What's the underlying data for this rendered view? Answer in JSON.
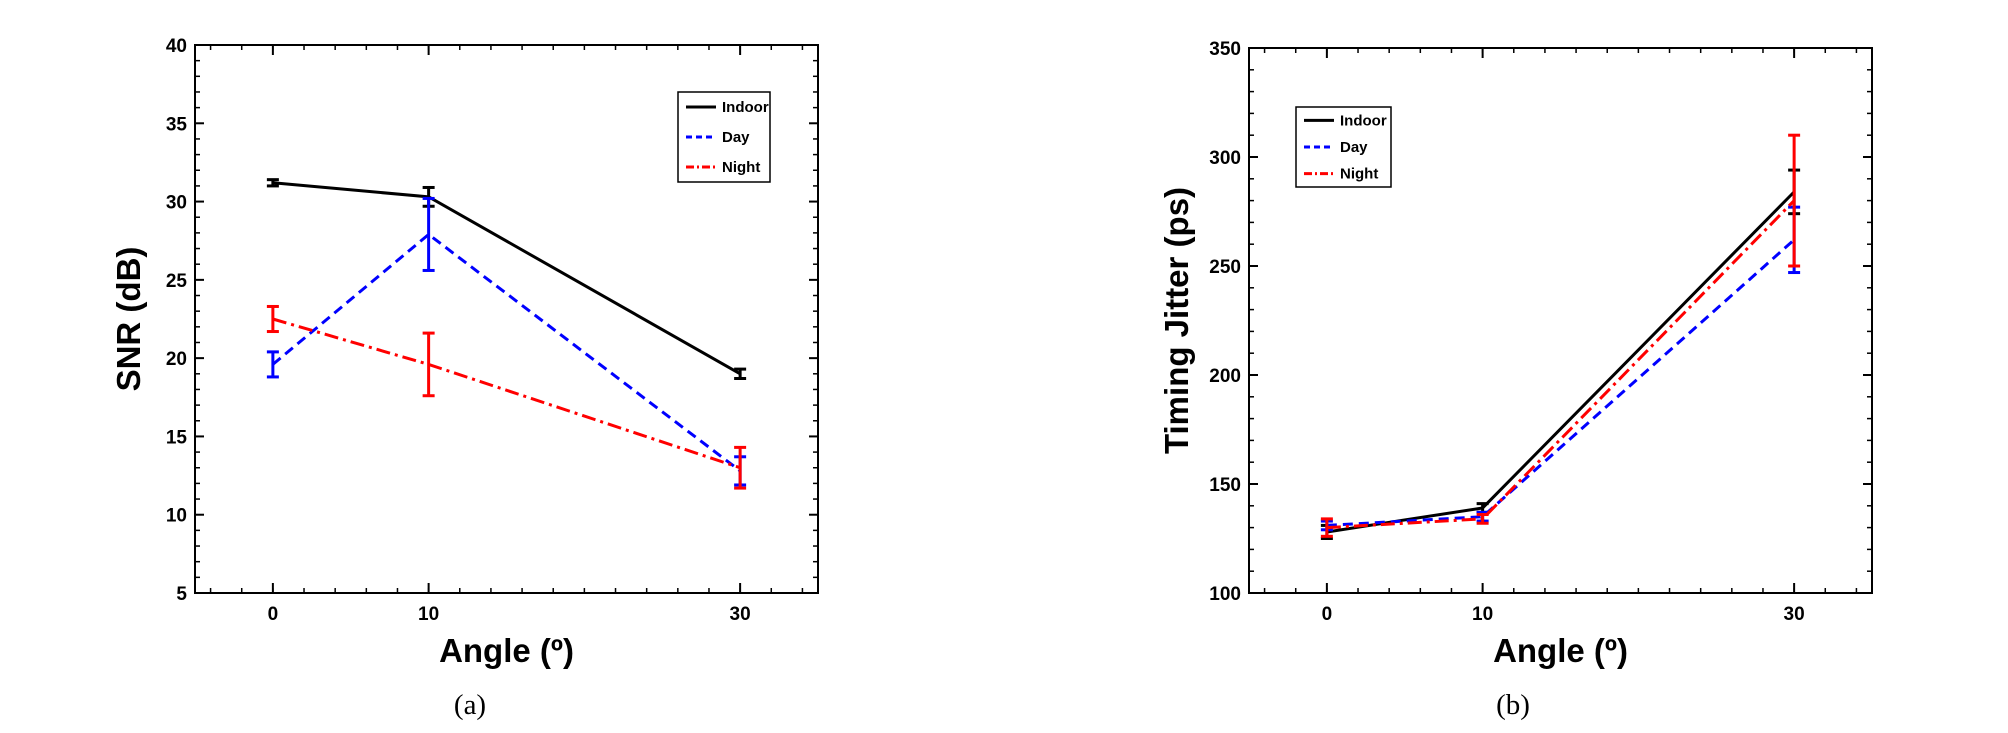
{
  "chart_data": [
    {
      "type": "line",
      "panel_label": "(a)",
      "xlabel": "Angle (º)",
      "ylabel": "SNR (dB)",
      "x": [
        0,
        10,
        30
      ],
      "x_ticks": [
        "0",
        "10",
        "30"
      ],
      "xlim": [
        -5,
        35
      ],
      "ylim": [
        5,
        40
      ],
      "y_ticks": [
        "5",
        "10",
        "15",
        "20",
        "25",
        "30",
        "35",
        "40"
      ],
      "legend_position": "top-right",
      "series": [
        {
          "name": "Indoor",
          "values": [
            31.2,
            30.3,
            19.0
          ],
          "error": [
            0.2,
            0.6,
            0.3
          ],
          "color": "#000000",
          "dash": "solid"
        },
        {
          "name": "Day",
          "values": [
            19.6,
            27.9,
            12.8
          ],
          "error": [
            0.8,
            2.3,
            0.9
          ],
          "color": "#0000ff",
          "dash": "dashed"
        },
        {
          "name": "Night",
          "values": [
            22.5,
            19.6,
            13.0
          ],
          "error": [
            0.8,
            2.0,
            1.3
          ],
          "color": "#ff0000",
          "dash": "dashdot"
        }
      ]
    },
    {
      "type": "line",
      "panel_label": "(b)",
      "xlabel": "Angle (º)",
      "ylabel": "Timing Jitter (ps)",
      "x": [
        0,
        10,
        30
      ],
      "x_ticks": [
        "0",
        "10",
        "30"
      ],
      "xlim": [
        -5,
        35
      ],
      "ylim": [
        100,
        350
      ],
      "y_ticks": [
        "100",
        "150",
        "200",
        "250",
        "300",
        "350"
      ],
      "legend_position": "top-left",
      "series": [
        {
          "name": "Indoor",
          "values": [
            128,
            139,
            284
          ],
          "error": [
            3,
            2,
            10
          ],
          "color": "#000000",
          "dash": "solid"
        },
        {
          "name": "Day",
          "values": [
            131,
            135,
            262
          ],
          "error": [
            2,
            2,
            15
          ],
          "color": "#0000ff",
          "dash": "dashed"
        },
        {
          "name": "Night",
          "values": [
            130,
            134,
            280
          ],
          "error": [
            4,
            2,
            30
          ],
          "color": "#ff0000",
          "dash": "dashdot"
        }
      ]
    }
  ]
}
